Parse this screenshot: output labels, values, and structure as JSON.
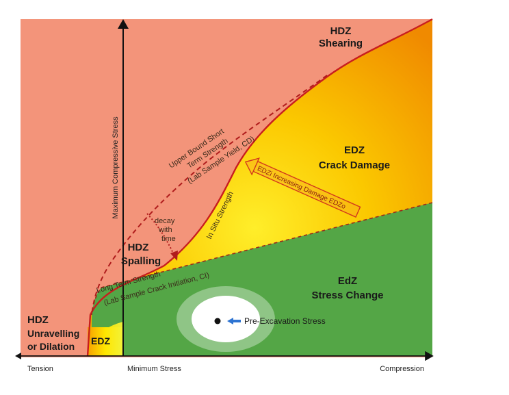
{
  "labels": {
    "hdz_shearing_1": "HDZ",
    "hdz_shearing_2": "Shearing",
    "edz_crack_1": "EDZ",
    "edz_crack_2": "Crack Damage",
    "edz_stress_1": "EdZ",
    "edz_stress_2": "Stress Change",
    "hdz_spalling_1": "HDZ",
    "hdz_spalling_2": "Spalling",
    "hdz_unravel_1": "HDZ",
    "hdz_unravel_2": "Unravelling",
    "hdz_unravel_3": "or Dilation",
    "edz_small": "EDZ",
    "upper_bound_1": "Upper Bound Short",
    "upper_bound_2": "Term Strength",
    "upper_bound_3": "(Lab Sample Yield, CD)",
    "in_situ": "In Situ Strength",
    "long_term_1": "Long Term Strength",
    "long_term_2": "(Lab Sample Crack Initiation, CI)",
    "decay_1": "decay",
    "decay_2": "with",
    "decay_3": "time",
    "damage_arrow": "EDZi Increasing Damage  EDZo",
    "pre_excavation": "Pre-Excavation Stress",
    "y_axis": "Maximum Compressive Stress",
    "x_tension": "Tension",
    "x_min_stress": "Minimum Stress",
    "x_compression": "Compression"
  },
  "colors": {
    "hdz": "#f3947a",
    "edz_yellow": "#ffee2a",
    "edz_orange": "#fbb400",
    "edz_deep": "#f07a00",
    "edz_stress_green": "#54a646",
    "strength_line": "#c81e1e",
    "pre_excavation_arrow": "#2e74d2"
  }
}
